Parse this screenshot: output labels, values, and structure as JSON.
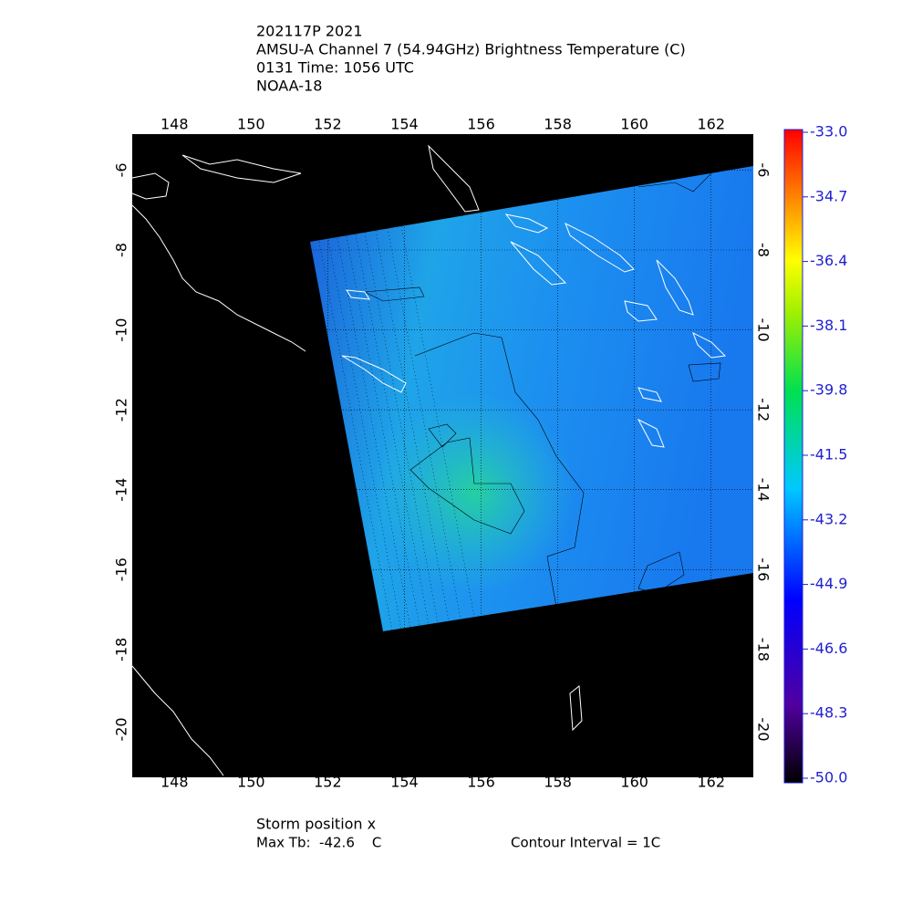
{
  "header": {
    "lines": [
      "202117P 2021",
      "AMSU-A Channel 7 (54.94GHz) Brightness Temperature (C)",
      "0131 Time: 1056 UTC",
      "NOAA-18"
    ]
  },
  "map": {
    "lon_range": [
      146.9,
      163.1
    ],
    "lat_range": [
      -5.1,
      -21.2
    ],
    "lon_ticks": [
      148,
      150,
      152,
      154,
      156,
      158,
      160,
      162
    ],
    "lat_ticks": [
      -6,
      -8,
      -10,
      -12,
      -14,
      -16,
      -18,
      -20
    ]
  },
  "colorbar": {
    "range": [
      -50,
      -33
    ],
    "ticks": [
      {
        "value": -33,
        "label": "-33.0"
      },
      {
        "value": -34.7,
        "label": "-34.7"
      },
      {
        "value": -36.4,
        "label": "-36.4"
      },
      {
        "value": -38.1,
        "label": "-38.1"
      },
      {
        "value": -39.8,
        "label": "-39.8"
      },
      {
        "value": -41.5,
        "label": "-41.5"
      },
      {
        "value": -43.2,
        "label": "-43.2"
      },
      {
        "value": -44.9,
        "label": "-44.9"
      },
      {
        "value": -46.6,
        "label": "-46.6"
      },
      {
        "value": -48.3,
        "label": "-48.3"
      },
      {
        "value": -50,
        "label": "-50.0"
      }
    ]
  },
  "footer": {
    "storm": "Storm position x",
    "max_tb": "Max Tb:  -42.6    C",
    "contour": "Contour Interval = 1C"
  }
}
